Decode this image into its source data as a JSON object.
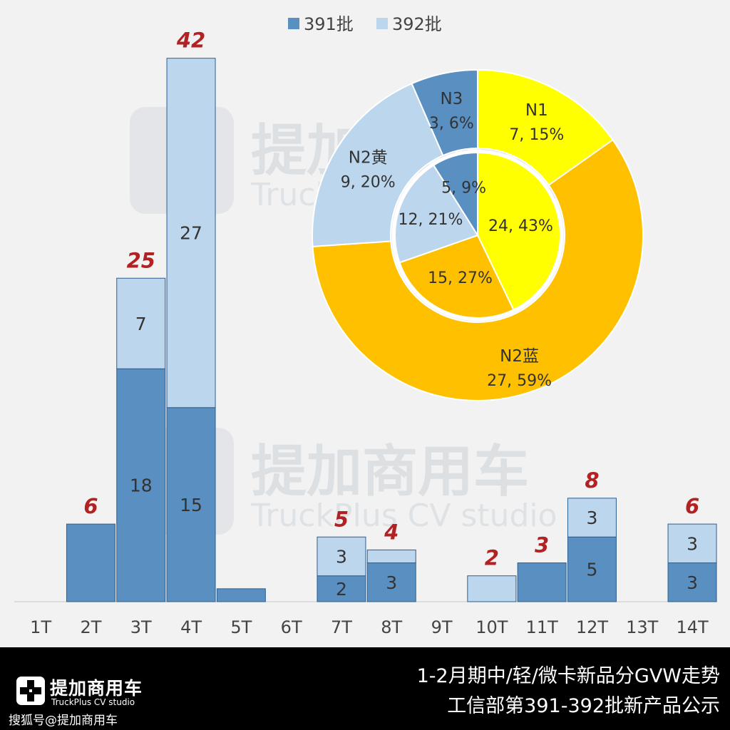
{
  "colors": {
    "dark": "#5a8fc1",
    "light": "#bcd6ee",
    "total": "#b22222",
    "yellow": "#ffff00",
    "orange": "#ffc000",
    "pieDark": "#5a8fc1",
    "pieLight": "#bcd6ee"
  },
  "chart_data": [
    {
      "type": "bar",
      "stacked": true,
      "categories": [
        "1T",
        "2T",
        "3T",
        "4T",
        "5T",
        "6T",
        "7T",
        "8T",
        "9T",
        "10T",
        "11T",
        "12T",
        "13T",
        "14T"
      ],
      "series": [
        {
          "name": "391批",
          "values": [
            0,
            6,
            18,
            15,
            1,
            0,
            2,
            3,
            0,
            0,
            3,
            5,
            0,
            3
          ],
          "labels": [
            "",
            "",
            "18",
            "15",
            "",
            "",
            "2",
            "3",
            "",
            "",
            "",
            "5",
            "",
            "3"
          ]
        },
        {
          "name": "392批",
          "values": [
            0,
            0,
            7,
            27,
            0,
            0,
            3,
            1,
            0,
            2,
            0,
            3,
            0,
            3
          ],
          "labels": [
            "",
            "",
            "7",
            "27",
            "",
            "",
            "3",
            "",
            "",
            "",
            "",
            "3",
            "",
            "3"
          ]
        }
      ],
      "totals": [
        "",
        "6",
        "25",
        "42",
        "",
        "",
        "5",
        "4",
        "",
        "2",
        "3",
        "8",
        "",
        "6"
      ],
      "ylim": [
        0,
        44
      ]
    },
    {
      "type": "pie",
      "style": "donut",
      "outer": [
        {
          "name": "N1",
          "value": 7,
          "label": "7, 15%",
          "color": "yellow"
        },
        {
          "name": "N2蓝",
          "value": 27,
          "label": "27, 59%",
          "color": "orange"
        },
        {
          "name": "N2黄",
          "value": 9,
          "label": "9, 20%",
          "color": "pieLight"
        },
        {
          "name": "N3",
          "value": 3,
          "label": "3, 6%",
          "color": "pieDark"
        }
      ],
      "inner": [
        {
          "value": 24,
          "label": "24, 43%",
          "color": "yellow"
        },
        {
          "value": 15,
          "label": "15, 27%",
          "color": "orange"
        },
        {
          "value": 12,
          "label": "12, 21%",
          "color": "pieLight"
        },
        {
          "value": 5,
          "label": "5, 9%",
          "color": "pieDark"
        }
      ]
    }
  ],
  "watermark": {
    "cn": "提加商用车",
    "en": "TruckPlus  CV studio"
  },
  "footer": {
    "brand": "提加商用车",
    "brand_sub": "TruckPlus CV studio",
    "handle": "搜狐号@提加商用车",
    "title1": "1-2月期中/轻/微卡新品分GVW走势",
    "title2": "工信部第391-392批新产品公示"
  }
}
